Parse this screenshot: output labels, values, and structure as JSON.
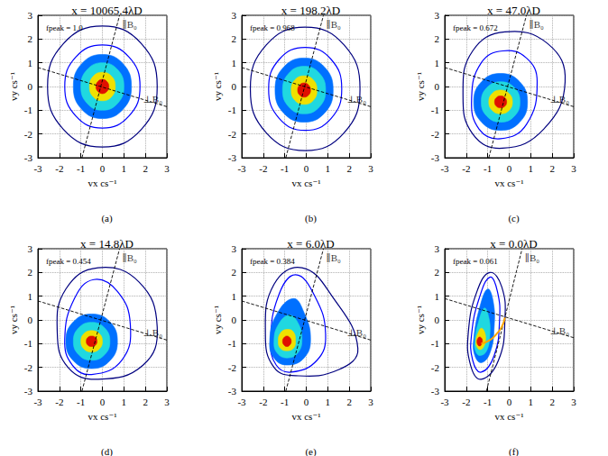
{
  "chart_data": [
    {
      "type": "contour",
      "title": "x = 10065.4λD",
      "annotation": "fpeak = 1.0",
      "caption": "(a)",
      "xlabel": "vx cs⁻¹",
      "ylabel": "vy cs⁻¹",
      "xlim": [
        -3,
        3
      ],
      "ylim": [
        -3,
        3
      ],
      "xticks": [
        -3,
        -2,
        -1,
        0,
        1,
        2,
        3
      ],
      "yticks": [
        -3,
        -2,
        -1,
        0,
        1,
        2,
        3
      ],
      "grid": true,
      "contours": [
        {
          "color": "#00007f",
          "x": [
            2.55,
            1.81,
            0,
            -1.81,
            -2.55,
            -1.81,
            0,
            1.81
          ],
          "y": [
            0,
            1.81,
            2.55,
            1.81,
            0,
            -1.81,
            -2.55,
            -1.81
          ]
        },
        {
          "color": "#0000ff",
          "x": [
            1.75,
            1.24,
            0,
            -1.24,
            -1.75,
            -1.24,
            0,
            1.24
          ],
          "y": [
            0,
            1.24,
            1.75,
            1.24,
            0,
            -1.24,
            -1.75,
            -1.24
          ]
        },
        {
          "color": "#0070ff",
          "x": [
            1.35,
            0.96,
            0,
            -0.96,
            -1.35,
            -0.96,
            0,
            0.96
          ],
          "y": [
            0,
            0.96,
            1.35,
            0.96,
            0,
            -0.96,
            -1.35,
            -0.96
          ]
        },
        {
          "color": "#20d8e0",
          "x": [
            1.0,
            0.71,
            0,
            -0.71,
            -1.0,
            -0.71,
            0,
            0.71
          ],
          "y": [
            0,
            0.71,
            1.0,
            0.71,
            0,
            -0.71,
            -1.0,
            -0.71
          ]
        },
        {
          "color": "#f0e000",
          "x": [
            0.6,
            0.43,
            0,
            -0.43,
            -0.6,
            -0.43,
            0,
            0.43
          ],
          "y": [
            0,
            0.43,
            0.6,
            0.43,
            0,
            -0.43,
            -0.6,
            -0.43
          ]
        },
        {
          "color": "#e01000",
          "x": [
            0.3,
            0.21,
            0,
            -0.21,
            -0.3,
            -0.21,
            0,
            0.21
          ],
          "y": [
            0,
            0.21,
            0.3,
            0.21,
            0,
            -0.21,
            -0.3,
            -0.21
          ]
        }
      ],
      "lines": [
        {
          "label": "∥B₀",
          "x": [
            -0.95,
            0.8
          ],
          "y": [
            -3,
            3
          ]
        },
        {
          "label": "⊥B₀",
          "x": [
            -3,
            3
          ],
          "y": [
            0.8,
            -0.85
          ]
        }
      ]
    },
    {
      "type": "contour",
      "title": "x = 198.2λD",
      "annotation": "fpeak = 0.968",
      "caption": "(b)",
      "xlabel": "vx cs⁻¹",
      "ylabel": "vy cs⁻¹",
      "xlim": [
        -3,
        3
      ],
      "ylim": [
        -3,
        3
      ],
      "xticks": [
        -3,
        -2,
        -1,
        0,
        1,
        2,
        3
      ],
      "yticks": [
        -3,
        -2,
        -1,
        0,
        1,
        2,
        3
      ],
      "grid": true,
      "contours": [
        {
          "color": "#00007f",
          "x": [
            2.5,
            1.76,
            -0.05,
            -1.86,
            -2.6,
            -1.86,
            -0.05,
            1.76
          ],
          "y": [
            -0.1,
            1.75,
            2.5,
            1.75,
            -0.1,
            -1.95,
            -2.7,
            -1.95
          ]
        },
        {
          "color": "#0000ff",
          "x": [
            1.65,
            1.16,
            -0.05,
            -1.26,
            -1.75,
            -1.26,
            -0.05,
            1.16
          ],
          "y": [
            -0.1,
            1.14,
            1.65,
            1.14,
            -0.1,
            -1.34,
            -1.85,
            -1.34
          ]
        },
        {
          "color": "#0070ff",
          "x": [
            1.25,
            0.86,
            -0.1,
            -1.06,
            -1.45,
            -1.06,
            -0.1,
            0.86
          ],
          "y": [
            -0.15,
            0.81,
            1.2,
            0.81,
            -0.15,
            -1.11,
            -1.5,
            -1.11
          ]
        },
        {
          "color": "#20d8e0",
          "x": [
            0.9,
            0.61,
            -0.1,
            -0.81,
            -1.1,
            -0.81,
            -0.1,
            0.61
          ],
          "y": [
            -0.15,
            0.56,
            0.85,
            0.56,
            -0.15,
            -0.86,
            -1.15,
            -0.86
          ]
        },
        {
          "color": "#f0e000",
          "x": [
            0.5,
            0.33,
            -0.1,
            -0.53,
            -0.7,
            -0.53,
            -0.1,
            0.33
          ],
          "y": [
            -0.15,
            0.28,
            0.45,
            0.28,
            -0.15,
            -0.58,
            -0.75,
            -0.58
          ]
        },
        {
          "color": "#e01000",
          "x": [
            0.2,
            0.11,
            -0.1,
            -0.31,
            -0.4,
            -0.31,
            -0.1,
            0.11
          ],
          "y": [
            -0.15,
            0.06,
            0.15,
            0.06,
            -0.15,
            -0.36,
            -0.45,
            -0.36
          ]
        }
      ],
      "lines": [
        {
          "label": "∥B₀",
          "x": [
            -0.95,
            0.8
          ],
          "y": [
            -3,
            3
          ]
        },
        {
          "label": "⊥B₀",
          "x": [
            -3,
            3
          ],
          "y": [
            0.8,
            -0.85
          ]
        }
      ]
    },
    {
      "type": "contour",
      "title": "x = 47.0λD",
      "annotation": "fpeak = 0.672",
      "caption": "(c)",
      "xlabel": "vx cs⁻¹",
      "ylabel": "vy cs⁻¹",
      "xlim": [
        -3,
        3
      ],
      "ylim": [
        -3,
        3
      ],
      "xticks": [
        -3,
        -2,
        -1,
        0,
        1,
        2,
        3
      ],
      "yticks": [
        -3,
        -2,
        -1,
        0,
        1,
        2,
        3
      ],
      "grid": true,
      "contours": [
        {
          "color": "#00007f",
          "x": [
            2.6,
            1.8,
            -0.2,
            -1.7,
            -2.15,
            -1.7,
            -0.3,
            1.6
          ],
          "y": [
            0.2,
            1.8,
            2.3,
            1.5,
            -0.3,
            -2.0,
            -2.6,
            -1.8
          ]
        },
        {
          "color": "#0000ff",
          "x": [
            1.3,
            0.8,
            -0.3,
            -1.3,
            -1.75,
            -1.4,
            -0.4,
            0.8
          ],
          "y": [
            0.2,
            1.2,
            1.5,
            1.0,
            -0.5,
            -1.8,
            -2.2,
            -1.6
          ]
        },
        {
          "color": "#0070ff",
          "x": [
            0.85,
            0.49,
            -0.4,
            -1.29,
            -1.65,
            -1.29,
            -0.4,
            0.49
          ],
          "y": [
            -0.65,
            0.2,
            0.55,
            0.2,
            -0.65,
            -1.5,
            -1.85,
            -1.5
          ]
        },
        {
          "color": "#20d8e0",
          "x": [
            0.5,
            0.24,
            -0.4,
            -1.04,
            -1.3,
            -1.04,
            -0.4,
            0.24
          ],
          "y": [
            -0.65,
            -0.05,
            0.2,
            -0.05,
            -0.65,
            -1.25,
            -1.5,
            -1.25
          ]
        },
        {
          "color": "#f0e000",
          "x": [
            0.15,
            -0.01,
            -0.4,
            -0.79,
            -0.95,
            -0.79,
            -0.4,
            -0.01
          ],
          "y": [
            -0.65,
            -0.29,
            -0.15,
            -0.29,
            -0.65,
            -1.01,
            -1.15,
            -1.01
          ]
        },
        {
          "color": "#e01000",
          "x": [
            -0.12,
            -0.2,
            -0.4,
            -0.6,
            -0.68,
            -0.6,
            -0.4,
            -0.2
          ],
          "y": [
            -0.65,
            -0.47,
            -0.4,
            -0.47,
            -0.65,
            -0.83,
            -0.9,
            -0.83
          ]
        }
      ],
      "lines": [
        {
          "label": "∥B₀",
          "x": [
            -0.95,
            0.8
          ],
          "y": [
            -3,
            3
          ]
        },
        {
          "label": "⊥B₀",
          "x": [
            -3,
            3
          ],
          "y": [
            0.8,
            -0.85
          ]
        }
      ]
    },
    {
      "type": "contour",
      "title": "x = 14.8λD",
      "annotation": "fpeak = 0.454",
      "caption": "(d)",
      "xlabel": "vx cs⁻¹",
      "ylabel": "vy cs⁻¹",
      "xlim": [
        -3,
        3
      ],
      "ylim": [
        -3,
        3
      ],
      "xticks": [
        -3,
        -2,
        -1,
        0,
        1,
        2,
        3
      ],
      "yticks": [
        -3,
        -2,
        -1,
        0,
        1,
        2,
        3
      ],
      "grid": true,
      "contours": [
        {
          "color": "#00007f",
          "x": [
            2.55,
            1.7,
            -0.2,
            -1.7,
            -2.1,
            -1.6,
            -0.2,
            1.9
          ],
          "y": [
            -0.3,
            1.6,
            2.2,
            1.3,
            -0.5,
            -2.0,
            -2.5,
            -1.9
          ]
        },
        {
          "color": "#0000ff",
          "x": [
            1.3,
            0.7,
            -0.4,
            -1.3,
            -1.75,
            -1.4,
            -0.5,
            0.9
          ],
          "y": [
            -0.2,
            1.2,
            1.7,
            0.9,
            -0.8,
            -1.9,
            -2.3,
            -1.7
          ]
        },
        {
          "color": "#0070ff",
          "x": [
            0.7,
            0.35,
            -0.5,
            -1.35,
            -1.7,
            -1.35,
            -0.5,
            0.35
          ],
          "y": [
            -0.9,
            -0.08,
            0.25,
            -0.08,
            -0.9,
            -1.72,
            -2.05,
            -1.72
          ]
        },
        {
          "color": "#20d8e0",
          "x": [
            0.35,
            0.1,
            -0.5,
            -1.1,
            -1.35,
            -1.1,
            -0.5,
            0.1
          ],
          "y": [
            -0.9,
            -0.33,
            -0.1,
            -0.33,
            -0.9,
            -1.47,
            -1.7,
            -1.47
          ]
        },
        {
          "color": "#f0e000",
          "x": [
            0,
            -0.14,
            -0.5,
            -0.86,
            -1,
            -0.86,
            -0.5,
            -0.14
          ],
          "y": [
            -0.9,
            -0.58,
            -0.45,
            -0.58,
            -0.9,
            -1.22,
            -1.35,
            -1.22
          ]
        },
        {
          "color": "#e01000",
          "x": [
            -0.25,
            -0.32,
            -0.5,
            -0.68,
            -0.75,
            -0.68,
            -0.5,
            -0.32
          ],
          "y": [
            -0.9,
            -0.74,
            -0.68,
            -0.74,
            -0.9,
            -1.06,
            -1.12,
            -1.06
          ]
        }
      ],
      "lines": [
        {
          "label": "∥B₀",
          "x": [
            -0.95,
            0.8
          ],
          "y": [
            -3,
            3
          ]
        },
        {
          "label": "⊥B₀",
          "x": [
            -3,
            3
          ],
          "y": [
            0.8,
            -0.85
          ]
        }
      ]
    },
    {
      "type": "contour",
      "title": "x = 6.0λD",
      "annotation": "fpeak = 0.384",
      "caption": "(e)",
      "xlabel": "vx cs⁻¹",
      "ylabel": "vy cs⁻¹",
      "xlim": [
        -3,
        3
      ],
      "ylim": [
        -3,
        3
      ],
      "xticks": [
        -3,
        -2,
        -1,
        0,
        1,
        2,
        3
      ],
      "yticks": [
        -3,
        -2,
        -1,
        0,
        1,
        2,
        3
      ],
      "grid": true,
      "contours": [
        {
          "color": "#00007f",
          "x": [
            2.4,
            1.2,
            -0.2,
            -1.5,
            -1.9,
            -1.5,
            -0.5,
            1.5
          ],
          "y": [
            -1.2,
            1.0,
            2.2,
            1.5,
            -0.6,
            -2.0,
            -2.35,
            -2.1
          ]
        },
        {
          "color": "#0000ff",
          "x": [
            0.9,
            0.4,
            -0.5,
            -1.3,
            -1.65,
            -1.4,
            -0.7,
            0.5
          ],
          "y": [
            -0.6,
            1.0,
            1.9,
            1.0,
            -0.9,
            -1.9,
            -2.2,
            -1.7
          ]
        },
        {
          "color": "#0070ff",
          "x": [
            0.2,
            -0.1,
            -0.6,
            -1.4,
            -1.7,
            -1.5,
            -0.9,
            -0.1
          ],
          "y": [
            -0.8,
            0.3,
            0.9,
            0.2,
            -0.9,
            -1.6,
            -1.9,
            -1.6
          ]
        },
        {
          "color": "#20d8e0",
          "x": [
            -0.2,
            -0.4,
            -0.8,
            -1.3,
            -1.5,
            -1.35,
            -0.9,
            -0.4
          ],
          "y": [
            -0.8,
            -0.1,
            0.2,
            -0.2,
            -0.9,
            -1.4,
            -1.6,
            -1.4
          ]
        },
        {
          "color": "#f0e000",
          "x": [
            -0.5,
            -0.6,
            -0.9,
            -1.2,
            -1.3,
            -1.2,
            -0.9,
            -0.6
          ],
          "y": [
            -0.9,
            -0.5,
            -0.4,
            -0.55,
            -0.9,
            -1.2,
            -1.3,
            -1.2
          ]
        },
        {
          "color": "#e01000",
          "x": [
            -0.7,
            -0.76,
            -0.9,
            -1.04,
            -1.1,
            -1.04,
            -0.9,
            -0.76
          ],
          "y": [
            -0.9,
            -0.75,
            -0.68,
            -0.75,
            -0.9,
            -1.05,
            -1.12,
            -1.05
          ]
        }
      ],
      "lines": [
        {
          "label": "∥B₀",
          "x": [
            -0.95,
            0.8
          ],
          "y": [
            -3,
            3
          ]
        },
        {
          "label": "⊥B₀",
          "x": [
            -3,
            3
          ],
          "y": [
            0.8,
            -0.85
          ]
        }
      ]
    },
    {
      "type": "contour",
      "title": "x = 0.0λD",
      "annotation": "fpeak = 0.061",
      "caption": "(f)",
      "xlabel": "vx cs⁻¹",
      "ylabel": "vy cs⁻¹",
      "xlim": [
        -3,
        3
      ],
      "ylim": [
        -3,
        3
      ],
      "xticks": [
        -3,
        -2,
        -1,
        0,
        1,
        2,
        3
      ],
      "yticks": [
        -3,
        -2,
        -1,
        0,
        1,
        2,
        3
      ],
      "grid": true,
      "contours": [
        {
          "color": "#00007f",
          "x": [
            -0.2,
            -0.35,
            -0.9,
            -1.5,
            -1.9,
            -1.8,
            -1.3,
            -0.5
          ],
          "y": [
            0.0,
            1.4,
            2.0,
            1.2,
            -0.5,
            -1.9,
            -2.5,
            -1.7
          ]
        },
        {
          "color": "#0000ff",
          "x": [
            -0.45,
            -0.55,
            -0.9,
            -1.4,
            -1.75,
            -1.7,
            -1.3,
            -0.7
          ],
          "y": [
            0.0,
            1.2,
            1.8,
            0.9,
            -0.6,
            -1.7,
            -2.2,
            -1.5
          ]
        },
        {
          "color": "#0070ff",
          "x": [
            -0.7,
            -0.75,
            -1.0,
            -1.35,
            -1.65,
            -1.6,
            -1.3,
            -0.9
          ],
          "y": [
            -0.3,
            0.8,
            1.3,
            0.6,
            -0.8,
            -1.5,
            -1.8,
            -1.4
          ]
        },
        {
          "color": "#20d8e0",
          "x": [
            -0.9,
            -0.95,
            -1.15,
            -1.4,
            -1.6,
            -1.55,
            -1.35,
            -1.05
          ],
          "y": [
            -0.6,
            0.1,
            0.5,
            0.0,
            -0.9,
            -1.35,
            -1.5,
            -1.3
          ]
        },
        {
          "color": "#f0e000",
          "x": [
            -1.1,
            -1.15,
            -1.3,
            -1.45,
            -1.55,
            -1.5,
            -1.35,
            -1.2
          ],
          "y": [
            -0.85,
            -0.5,
            -0.35,
            -0.55,
            -0.9,
            -1.15,
            -1.25,
            -1.15
          ]
        },
        {
          "color": "#e01000",
          "x": [
            -1.25,
            -1.28,
            -1.38,
            -1.46,
            -1.5,
            -1.46,
            -1.38,
            -1.3
          ],
          "y": [
            -0.9,
            -0.78,
            -0.72,
            -0.78,
            -0.92,
            -1.05,
            -1.1,
            -1.05
          ]
        }
      ],
      "lines": [
        {
          "label": "∥B₀",
          "x": [
            -1.06,
            0.6
          ],
          "y": [
            -3,
            3
          ]
        },
        {
          "label": "⊥B₀",
          "x": [
            -3,
            3
          ],
          "y": [
            0.9,
            -0.75
          ]
        }
      ],
      "curve": {
        "color": "#ffa500",
        "x": [
          -1.3,
          -0.9,
          -0.6,
          -0.35,
          -0.2
        ],
        "y": [
          -1.0,
          -0.85,
          -0.6,
          -0.3,
          0.1
        ]
      }
    }
  ]
}
